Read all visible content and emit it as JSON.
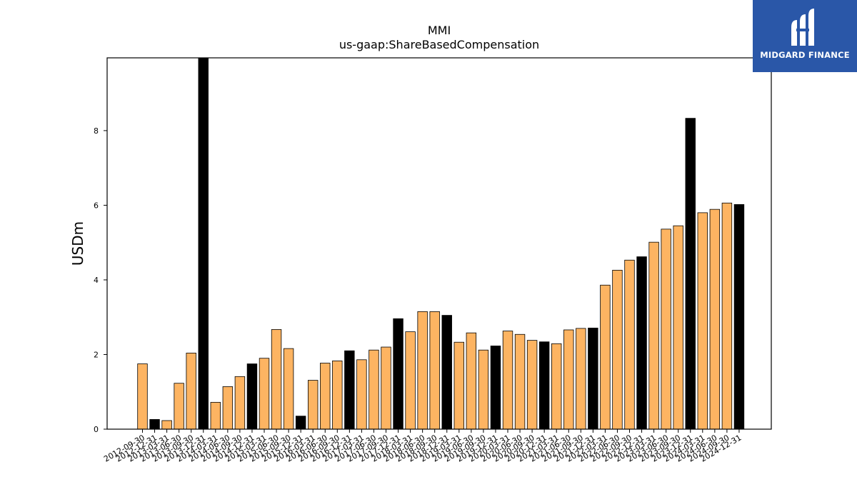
{
  "brand": {
    "name": "MIDGARD FINANCE",
    "bg_color": "#2a57a8"
  },
  "chart_data": {
    "type": "bar",
    "title": "MMI",
    "subtitle": "us-gaap:ShareBasedCompensation",
    "xlabel": "",
    "ylabel": "USDm",
    "ylim": [
      0,
      9.95
    ],
    "yticks": [
      0,
      2,
      4,
      6,
      8
    ],
    "grid": false,
    "colors": {
      "quarter": "#fdb462",
      "annual": "#000000",
      "edge": "#000000"
    },
    "categories": [
      "2012-09-30",
      "2012-12-31",
      "2013-03-31",
      "2013-06-30",
      "2013-09-30",
      "2013-12-31",
      "2014-03-31",
      "2014-06-30",
      "2014-09-30",
      "2014-12-31",
      "2015-03-31",
      "2015-06-30",
      "2015-09-30",
      "2015-12-31",
      "2016-03-31",
      "2016-06-30",
      "2016-09-30",
      "2016-12-31",
      "2017-03-31",
      "2017-06-30",
      "2017-09-30",
      "2017-12-31",
      "2018-03-31",
      "2018-06-30",
      "2018-09-30",
      "2018-12-31",
      "2019-03-31",
      "2019-06-30",
      "2019-09-30",
      "2019-12-31",
      "2020-03-31",
      "2020-06-30",
      "2020-09-30",
      "2020-12-31",
      "2021-03-31",
      "2021-06-30",
      "2021-09-30",
      "2021-12-31",
      "2022-03-31",
      "2022-06-30",
      "2022-09-30",
      "2022-12-31",
      "2023-03-31",
      "2023-06-30",
      "2023-09-30",
      "2023-12-31",
      "2024-03-31",
      "2024-06-30",
      "2024-09-30",
      "2024-12-31"
    ],
    "values": [
      1.75,
      0.26,
      0.23,
      1.23,
      2.04,
      9.95,
      0.72,
      1.14,
      1.41,
      1.75,
      1.9,
      2.67,
      2.16,
      0.35,
      1.31,
      1.77,
      1.83,
      2.1,
      1.86,
      2.12,
      2.2,
      2.96,
      2.61,
      3.15,
      3.15,
      3.05,
      2.33,
      2.58,
      2.12,
      2.23,
      2.63,
      2.54,
      2.38,
      2.34,
      2.29,
      2.66,
      2.7,
      2.71,
      3.86,
      4.26,
      4.53,
      4.62,
      5.01,
      5.36,
      5.45,
      8.33,
      5.8,
      5.89,
      6.06,
      6.02
    ],
    "is_annual": [
      false,
      true,
      false,
      false,
      false,
      true,
      false,
      false,
      false,
      true,
      false,
      false,
      false,
      true,
      false,
      false,
      false,
      true,
      false,
      false,
      false,
      true,
      false,
      false,
      false,
      true,
      false,
      false,
      false,
      true,
      false,
      false,
      false,
      true,
      false,
      false,
      false,
      true,
      false,
      false,
      false,
      true,
      false,
      false,
      false,
      true,
      false,
      false,
      false,
      true
    ]
  }
}
